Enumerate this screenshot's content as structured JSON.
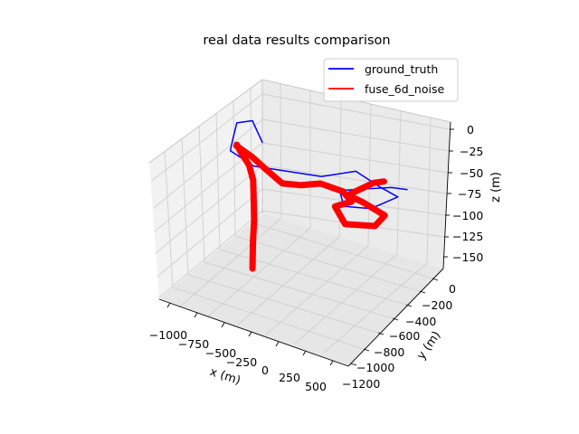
{
  "chart_data": {
    "type": "line",
    "projection": "3d",
    "title": "real data results comparison",
    "xlabel": "x (m)",
    "ylabel": "y (m)",
    "zlabel": "z (m)",
    "x_ticks": [
      "−1000",
      "−750",
      "−500",
      "−250",
      "0",
      "250",
      "500"
    ],
    "y_ticks": [
      "0",
      "−200",
      "−400",
      "−600",
      "−800",
      "−1000",
      "−1200"
    ],
    "z_ticks": [
      "0",
      "−25",
      "−50",
      "−75",
      "−100",
      "−125",
      "−150"
    ],
    "xlim": [
      -1100,
      600
    ],
    "ylim": [
      -1250,
      100
    ],
    "zlim": [
      -160,
      5
    ],
    "grid": true,
    "legend_position": "top-right",
    "series": [
      {
        "name": "ground_truth",
        "color": "#0000ff",
        "points": [
          [
            -700,
            -480,
            -12
          ],
          [
            -880,
            -350,
            -4
          ],
          [
            -1000,
            -380,
            -10
          ],
          [
            -940,
            -520,
            -16
          ],
          [
            -880,
            -640,
            -18
          ],
          [
            -640,
            -680,
            -22
          ],
          [
            -60,
            -640,
            -10
          ],
          [
            180,
            -540,
            0
          ],
          [
            450,
            -620,
            0
          ],
          [
            640,
            -660,
            0
          ],
          [
            520,
            -840,
            -6
          ],
          [
            320,
            -900,
            -8
          ],
          [
            200,
            -780,
            -4
          ],
          [
            360,
            -680,
            -2
          ],
          [
            540,
            -600,
            2
          ],
          [
            660,
            -560,
            2
          ]
        ]
      },
      {
        "name": "fuse_6d_noise",
        "color": "#ff0000",
        "points": [
          [
            -680,
            -640,
            -150
          ],
          [
            -690,
            -620,
            -120
          ],
          [
            -690,
            -605,
            -95
          ],
          [
            -700,
            -595,
            -75
          ],
          [
            -730,
            -560,
            -52
          ],
          [
            -780,
            -540,
            -38
          ],
          [
            -870,
            -520,
            -28
          ],
          [
            -910,
            -510,
            -22
          ],
          [
            -880,
            -560,
            -18
          ],
          [
            -700,
            -620,
            -18
          ],
          [
            -520,
            -690,
            -20
          ],
          [
            -330,
            -760,
            -22
          ],
          [
            -160,
            -760,
            -16
          ],
          [
            0,
            -740,
            -8
          ],
          [
            200,
            -740,
            -8
          ],
          [
            320,
            -800,
            -10
          ],
          [
            240,
            -900,
            -12
          ],
          [
            400,
            -1000,
            -18
          ],
          [
            640,
            -960,
            -12
          ],
          [
            660,
            -860,
            -6
          ],
          [
            420,
            -800,
            -6
          ],
          [
            260,
            -760,
            -8
          ],
          [
            380,
            -600,
            0
          ],
          [
            460,
            -580,
            4
          ]
        ]
      }
    ]
  }
}
